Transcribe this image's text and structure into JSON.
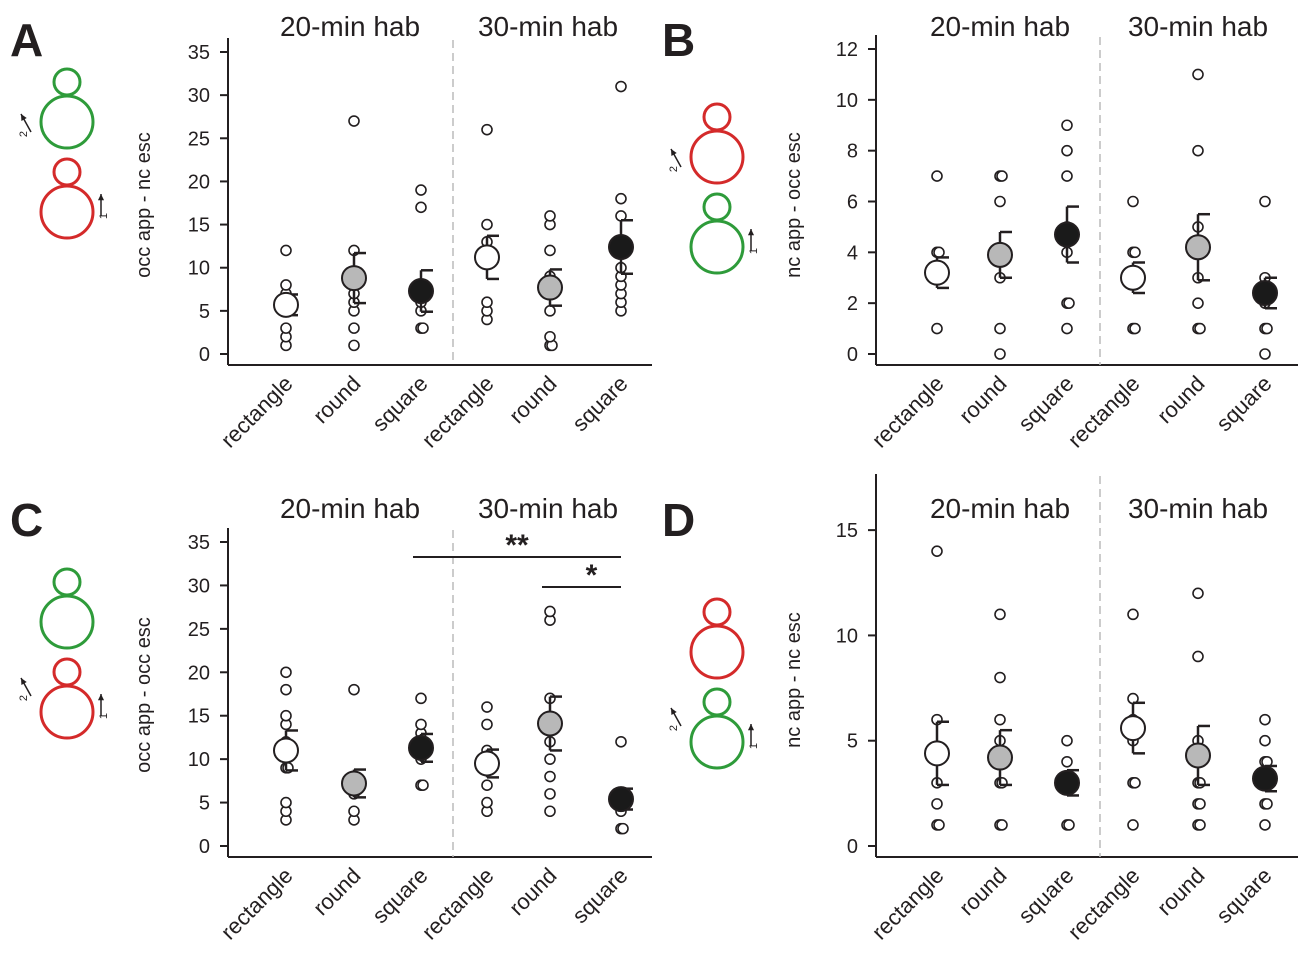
{
  "figure": {
    "panels": [
      {
        "letter": "A",
        "hab_labels": [
          "20-min hab",
          "30-min hab"
        ],
        "ylabel": "occ app - nc esc",
        "icon": {
          "top": "green",
          "bottom": "red",
          "arrows": [
            {
              "label": "2",
              "at": "top"
            },
            {
              "label": "1",
              "at": "bottom"
            }
          ]
        }
      },
      {
        "letter": "B",
        "hab_labels": [
          "20-min hab",
          "30-min hab"
        ],
        "ylabel": "nc app - occ esc",
        "icon": {
          "top": "red",
          "bottom": "green",
          "arrows": [
            {
              "label": "2",
              "at": "top"
            },
            {
              "label": "1",
              "at": "bottom"
            }
          ]
        }
      },
      {
        "letter": "C",
        "hab_labels": [
          "20-min hab",
          "30-min hab"
        ],
        "ylabel": "occ app - occ esc",
        "icon": {
          "top": "green",
          "bottom": "red",
          "arrows": [
            {
              "label": "2",
              "at": "bottom"
            },
            {
              "label": "1",
              "at": "bottom"
            }
          ]
        }
      },
      {
        "letter": "D",
        "hab_labels": [
          "20-min hab",
          "30-min hab"
        ],
        "ylabel": "nc app - nc esc",
        "icon": {
          "top": "red",
          "bottom": "green",
          "arrows": [
            {
              "label": "2",
              "at": "bottom"
            },
            {
              "label": "1",
              "at": "bottom"
            }
          ]
        }
      }
    ],
    "colors": {
      "green": "#2e9b3a",
      "red": "#d42a2a",
      "gray_mean": "#b8b8b8",
      "black_mean": "#1a1a1a",
      "divider": "#bbbbbb",
      "axis": "#231f20"
    }
  },
  "chart_data": [
    {
      "type": "scatter",
      "panel": "A",
      "categories": [
        "rectangle",
        "round",
        "square",
        "rectangle",
        "round",
        "square"
      ],
      "groups": [
        "20-min hab",
        "20-min hab",
        "20-min hab",
        "30-min hab",
        "30-min hab",
        "30-min hab"
      ],
      "ylabel": "occ app - nc esc",
      "ylim": [
        0,
        35
      ],
      "yticks": [
        0,
        5,
        10,
        15,
        20,
        25,
        30,
        35
      ],
      "means": [
        5.7,
        8.8,
        7.3,
        11.2,
        7.7,
        12.4
      ],
      "sem": [
        1.2,
        2.9,
        2.4,
        2.5,
        2.1,
        3.1
      ],
      "mean_fill": [
        "white",
        "gray",
        "black",
        "white",
        "gray",
        "black"
      ],
      "points": [
        [
          1,
          2,
          3,
          5,
          6,
          7,
          8,
          12
        ],
        [
          1,
          3,
          5,
          6,
          7,
          9,
          12,
          27
        ],
        [
          3,
          3,
          5,
          6,
          7,
          8,
          17,
          19
        ],
        [
          4,
          5,
          6,
          11,
          12,
          13,
          15,
          26
        ],
        [
          1,
          1,
          2,
          5,
          8,
          9,
          12,
          15,
          16
        ],
        [
          5,
          6,
          7,
          8,
          9,
          10,
          16,
          18,
          31
        ]
      ]
    },
    {
      "type": "scatter",
      "panel": "B",
      "categories": [
        "rectangle",
        "round",
        "square",
        "rectangle",
        "round",
        "square"
      ],
      "groups": [
        "20-min hab",
        "20-min hab",
        "20-min hab",
        "30-min hab",
        "30-min hab",
        "30-min hab"
      ],
      "ylabel": "nc app - occ esc",
      "ylim": [
        0,
        12
      ],
      "yticks": [
        0,
        2,
        4,
        6,
        8,
        10,
        12
      ],
      "means": [
        3.2,
        3.9,
        4.7,
        3.0,
        4.2,
        2.4
      ],
      "sem": [
        0.6,
        0.9,
        1.1,
        0.6,
        1.3,
        0.6
      ],
      "mean_fill": [
        "white",
        "gray",
        "black",
        "white",
        "gray",
        "black"
      ],
      "points": [
        [
          1,
          3,
          4,
          4,
          7
        ],
        [
          0,
          1,
          3,
          4,
          6,
          7,
          7
        ],
        [
          1,
          2,
          2,
          4,
          5,
          7,
          8,
          9
        ],
        [
          1,
          1,
          3,
          4,
          4,
          6
        ],
        [
          1,
          1,
          2,
          3,
          5,
          8,
          11
        ],
        [
          0,
          1,
          1,
          2,
          3,
          6
        ]
      ]
    },
    {
      "type": "scatter",
      "panel": "C",
      "categories": [
        "rectangle",
        "round",
        "square",
        "rectangle",
        "round",
        "square"
      ],
      "groups": [
        "20-min hab",
        "20-min hab",
        "20-min hab",
        "30-min hab",
        "30-min hab",
        "30-min hab"
      ],
      "ylabel": "occ app - occ esc",
      "ylim": [
        0,
        35
      ],
      "yticks": [
        0,
        5,
        10,
        15,
        20,
        25,
        30,
        35
      ],
      "means": [
        11.0,
        7.2,
        11.3,
        9.5,
        14.1,
        5.4
      ],
      "sem": [
        2.3,
        1.6,
        1.6,
        1.6,
        3.1,
        1.2
      ],
      "mean_fill": [
        "white",
        "gray",
        "black",
        "white",
        "gray",
        "black"
      ],
      "points": [
        [
          3,
          4,
          5,
          9,
          9,
          12,
          14,
          15,
          18,
          20
        ],
        [
          3,
          4,
          6,
          7,
          8,
          18
        ],
        [
          7,
          7,
          10,
          11,
          12,
          13,
          14,
          17
        ],
        [
          4,
          5,
          7,
          9,
          10,
          11,
          14,
          16
        ],
        [
          4,
          6,
          8,
          10,
          12,
          14,
          17,
          26,
          27
        ],
        [
          2,
          2,
          4,
          5,
          6,
          12
        ]
      ],
      "significance": [
        {
          "label": "**",
          "from_index": 2,
          "to_index": 5
        },
        {
          "label": "*",
          "from_index": 4,
          "to_index": 5
        }
      ]
    },
    {
      "type": "scatter",
      "panel": "D",
      "categories": [
        "rectangle",
        "round",
        "square",
        "rectangle",
        "round",
        "square"
      ],
      "groups": [
        "20-min hab",
        "20-min hab",
        "20-min hab",
        "30-min hab",
        "30-min hab",
        "30-min hab"
      ],
      "ylabel": "nc app - nc esc",
      "ylim": [
        0,
        17
      ],
      "yticks": [
        0,
        5,
        10,
        15
      ],
      "means": [
        4.4,
        4.2,
        3.0,
        5.6,
        4.3,
        3.2
      ],
      "sem": [
        1.5,
        1.3,
        0.6,
        1.2,
        1.4,
        0.6
      ],
      "mean_fill": [
        "white",
        "gray",
        "black",
        "white",
        "gray",
        "black"
      ],
      "points": [
        [
          1,
          1,
          2,
          3,
          6,
          14
        ],
        [
          1,
          1,
          3,
          3,
          5,
          6,
          8,
          11
        ],
        [
          1,
          1,
          3,
          4,
          5
        ],
        [
          1,
          3,
          3,
          5,
          6,
          7,
          11
        ],
        [
          1,
          1,
          2,
          2,
          3,
          3,
          5,
          9,
          12
        ],
        [
          1,
          2,
          2,
          3,
          4,
          4,
          5,
          6
        ]
      ]
    }
  ]
}
